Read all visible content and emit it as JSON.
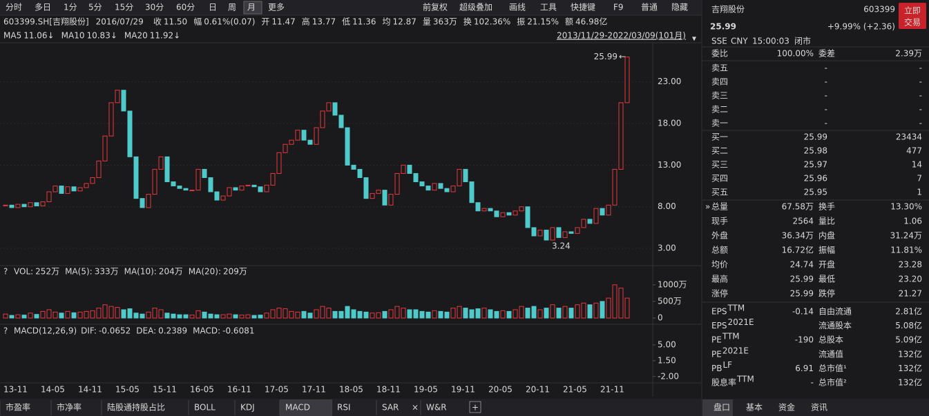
{
  "toolbar": {
    "periods": [
      "分时",
      "多日",
      "1分",
      "5分",
      "15分",
      "30分",
      "60分",
      "日",
      "周",
      "月",
      "更多"
    ],
    "selected": 9,
    "tools": [
      "前复权",
      "超级叠加",
      "画线",
      "工具",
      "快捷键",
      "F9",
      "普通",
      "隐藏"
    ]
  },
  "info": {
    "code": "603399.SH[吉翔股份]",
    "date": "2016/07/29",
    "fields": [
      [
        "收",
        "11.50"
      ],
      [
        "幅",
        "0.61%(0.07)"
      ],
      [
        "开",
        "11.47"
      ],
      [
        "高",
        "13.77"
      ],
      [
        "低",
        "11.36"
      ],
      [
        "均",
        "12.87"
      ],
      [
        "量",
        "363万"
      ],
      [
        "换",
        "102.36%"
      ],
      [
        "振",
        "21.15%"
      ],
      [
        "额",
        "46.98亿"
      ]
    ]
  },
  "ma": [
    {
      "name": "MA5",
      "value": "11.06↓",
      "color": "#ff9a2e"
    },
    {
      "name": "MA10",
      "value": "10.83↓",
      "color": "#f0e040"
    },
    {
      "name": "MA20",
      "value": "11.92↓",
      "color": "#e040e0"
    }
  ],
  "range": "2013/11/29-2022/03/09(101月)",
  "kline": {
    "type": "candlestick",
    "closes": [
      8.2,
      7.9,
      8.3,
      8.0,
      8.5,
      8.1,
      8.6,
      9.8,
      10.5,
      9.6,
      10.4,
      9.9,
      10.3,
      10.8,
      11.5,
      13.5,
      16.5,
      20.5,
      22.0,
      19.5,
      14.0,
      9.0,
      7.9,
      9.5,
      12.5,
      14.0,
      11.0,
      10.5,
      10.2,
      10.0,
      10.0,
      12.5,
      11.5,
      9.8,
      8.8,
      9.3,
      10.3,
      10.0,
      10.5,
      10.6,
      10.4,
      9.8,
      10.6,
      12.0,
      14.5,
      15.5,
      16.0,
      17.2,
      16.0,
      15.5,
      17.5,
      19.5,
      20.5,
      19.0,
      17.5,
      13.0,
      12.5,
      11.5,
      9.0,
      9.6,
      10.0,
      8.2,
      9.5,
      12.0,
      13.0,
      12.0,
      11.0,
      10.5,
      10.0,
      10.8,
      10.2,
      9.8,
      10.5,
      12.5,
      11.0,
      8.5,
      7.5,
      7.8,
      7.5,
      6.8,
      7.3,
      7.0,
      7.5,
      8.0,
      5.5,
      4.5,
      5.2,
      4.0,
      5.5,
      4.3,
      5.0,
      4.8,
      5.5,
      6.5,
      6.0,
      7.8,
      7.0,
      8.2,
      12.5,
      20.5,
      25.99
    ],
    "up_color": "#e8383d",
    "down_color": "#4fc9c9",
    "ylim": [
      1.1,
      27.2
    ],
    "yticks": [
      {
        "value": 23,
        "label": "23.00"
      },
      {
        "value": 18,
        "label": "18.00"
      },
      {
        "value": 13,
        "label": "13.00"
      },
      {
        "value": 8,
        "label": "8.00"
      },
      {
        "value": 3,
        "label": "3.00"
      }
    ],
    "high_label": 25.99,
    "low_label": 3.24,
    "xtick_labels": [
      "13-11",
      "14-05",
      "14-11",
      "15-05",
      "15-11",
      "16-05",
      "16-11",
      "17-05",
      "17-11",
      "18-05",
      "18-11",
      "19-05",
      "19-11",
      "20-05",
      "20-11",
      "21-05",
      "21-11"
    ]
  },
  "volume": {
    "header": [
      {
        "name": "VOL:",
        "value": "252万",
        "color": "#dddddd"
      },
      {
        "name": "MA(5):",
        "value": "333万",
        "color": "#dddddd"
      },
      {
        "name": "MA(10):",
        "value": "204万",
        "color": "#ff9a2e"
      },
      {
        "name": "MA(20):",
        "value": "209万",
        "color": "#e040e0"
      }
    ],
    "values": [
      120,
      80,
      100,
      90,
      150,
      110,
      200,
      250,
      180,
      150,
      200,
      160,
      180,
      200,
      220,
      300,
      400,
      350,
      320,
      250,
      280,
      150,
      120,
      180,
      300,
      250,
      150,
      120,
      100,
      100,
      90,
      220,
      180,
      120,
      100,
      100,
      120,
      100,
      90,
      100,
      80,
      90,
      150,
      250,
      300,
      280,
      200,
      180,
      200,
      150,
      250,
      350,
      300,
      200,
      200,
      350,
      250,
      200,
      180,
      150,
      160,
      200,
      250,
      350,
      300,
      250,
      250,
      200,
      180,
      220,
      200,
      180,
      300,
      350,
      300,
      250,
      280,
      300,
      250,
      200,
      220,
      200,
      250,
      350,
      300,
      350,
      250,
      300,
      400,
      300,
      350,
      300,
      400,
      450,
      400,
      450,
      500,
      600,
      1000,
      900,
      600
    ],
    "ylim": [
      0,
      1100
    ],
    "yticks": [
      {
        "value": 1000,
        "label": "1000万"
      },
      {
        "value": 500,
        "label": "500万"
      },
      0
    ]
  },
  "macd": {
    "title": "MACD(12,26,9)",
    "fields": [
      {
        "name": "DIF:",
        "value": "-0.0652",
        "color": "#dddddd"
      },
      {
        "name": "DEA:",
        "value": "0.2389",
        "color": "#f0e040"
      },
      {
        "name": "MACD:",
        "value": "-0.6081",
        "color": "#e040e0"
      }
    ],
    "ylim": [
      -3.1,
      6.2
    ],
    "yticks": [
      {
        "value": 5,
        "label": "5.00"
      },
      {
        "value": 1.5,
        "label": "1.50"
      },
      {
        "value": -2,
        "label": "-2.00"
      }
    ]
  },
  "bottom_tabs": [
    "市盈率",
    "市净率",
    "陆股通持股占比",
    "BOLL",
    "KDJ",
    "MACD",
    "RSI",
    "SAR",
    "W&R"
  ],
  "bottom_selected": 5,
  "quote": {
    "name": "吉翔股份",
    "code": "603399",
    "trade": [
      "立即",
      "交易"
    ],
    "price": "25.99",
    "change": "+9.99% (+2.36)",
    "meta": [
      "SSE",
      "CNY",
      "15:00:03",
      "闭市"
    ],
    "ratio": [
      [
        "委比",
        "100.00%"
      ],
      [
        "委差",
        "2.39万"
      ]
    ],
    "asks": [
      [
        "卖五",
        "-",
        "-"
      ],
      [
        "卖四",
        "-",
        "-"
      ],
      [
        "卖三",
        "-",
        "-"
      ],
      [
        "卖二",
        "-",
        "-"
      ],
      [
        "卖一",
        "-",
        "-"
      ]
    ],
    "bids": [
      [
        "买一",
        "25.99",
        "23434"
      ],
      [
        "买二",
        "25.98",
        "477"
      ],
      [
        "买三",
        "25.97",
        "14"
      ],
      [
        "买四",
        "25.96",
        "7"
      ],
      [
        "买五",
        "25.95",
        "1"
      ]
    ],
    "stats": [
      [
        [
          "总量",
          "67.58万"
        ],
        [
          "换手",
          "13.30%"
        ]
      ],
      [
        [
          "现手",
          "2564"
        ],
        [
          "量比",
          "1.06"
        ]
      ],
      [
        [
          "外盘",
          "36.34万"
        ],
        [
          "内盘",
          "31.24万"
        ]
      ],
      [
        [
          "总额",
          "16.72亿"
        ],
        [
          "振幅",
          "11.81%"
        ]
      ],
      [
        [
          "均价",
          "24.74"
        ],
        [
          "开盘",
          "23.28"
        ]
      ],
      [
        [
          "最高",
          "25.99"
        ],
        [
          "最低",
          "23.20"
        ]
      ],
      [
        [
          "涨停",
          "25.99"
        ],
        [
          "跌停",
          "21.27"
        ]
      ]
    ],
    "fundamentals": [
      [
        {
          "label": "EPS",
          "sup": "TTM",
          "value": "-0.14"
        },
        {
          "label": "自由流通",
          "value": "2.81亿"
        }
      ],
      [
        {
          "label": "EPS",
          "sup": "2021E"
        },
        {
          "label": "流通股本",
          "value": "5.08亿"
        }
      ],
      [
        {
          "label": "PE",
          "sup": "TTM",
          "value": "-190"
        },
        {
          "label": "总股本",
          "value": "5.09亿"
        }
      ],
      [
        {
          "label": "PE",
          "sup": "2021E"
        },
        {
          "label": "流通值",
          "value": "132亿"
        }
      ],
      [
        {
          "label": "PB",
          "sup": "LF",
          "value": "6.91"
        },
        {
          "label": "总市值¹",
          "value": "132亿"
        }
      ],
      [
        {
          "label": "股息率",
          "sup": "TTM",
          "value": "-"
        },
        {
          "label": "总市值²",
          "value": "132亿"
        }
      ]
    ],
    "tabs": [
      "盘口",
      "基本",
      "资金",
      "资讯"
    ],
    "tab_selected": 0
  }
}
